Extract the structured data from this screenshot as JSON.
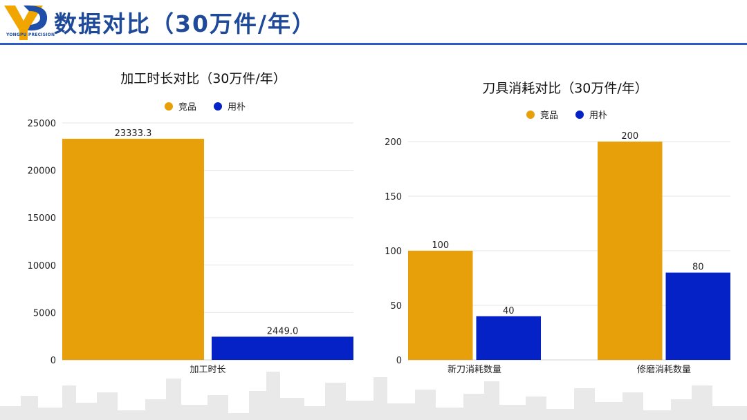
{
  "header": {
    "title": "数据对比（30万件/年）",
    "logo_text": "YONGPU PRECISION"
  },
  "colors": {
    "competitor": "#E8A00A",
    "yongpu": "#0422C6",
    "title": "#1E4A99",
    "rule": "#2D5CC8"
  },
  "chart_data": [
    {
      "type": "bar",
      "title": "加工时长对比（30万件/年）",
      "categories": [
        "加工时长"
      ],
      "series": [
        {
          "name": "竞品",
          "values": [
            23333.3
          ],
          "labels": [
            "23333.3"
          ]
        },
        {
          "name": "用朴",
          "values": [
            2449.0
          ],
          "labels": [
            "2449.0"
          ]
        }
      ],
      "ylim": [
        0,
        25000
      ],
      "yticks": [
        0,
        5000,
        10000,
        15000,
        20000,
        25000
      ],
      "legend": "top-center",
      "grid": true
    },
    {
      "type": "bar",
      "title": "刀具消耗对比（30万件/年）",
      "categories": [
        "新刀消耗数量",
        "修磨消耗数量"
      ],
      "series": [
        {
          "name": "竞品",
          "values": [
            100,
            200
          ],
          "labels": [
            "100",
            "200"
          ]
        },
        {
          "name": "用朴",
          "values": [
            40,
            80
          ],
          "labels": [
            "40",
            "80"
          ]
        }
      ],
      "ylim": [
        0,
        200
      ],
      "yticks": [
        0,
        50,
        100,
        150,
        200
      ],
      "legend": "top-center",
      "grid": true
    }
  ]
}
